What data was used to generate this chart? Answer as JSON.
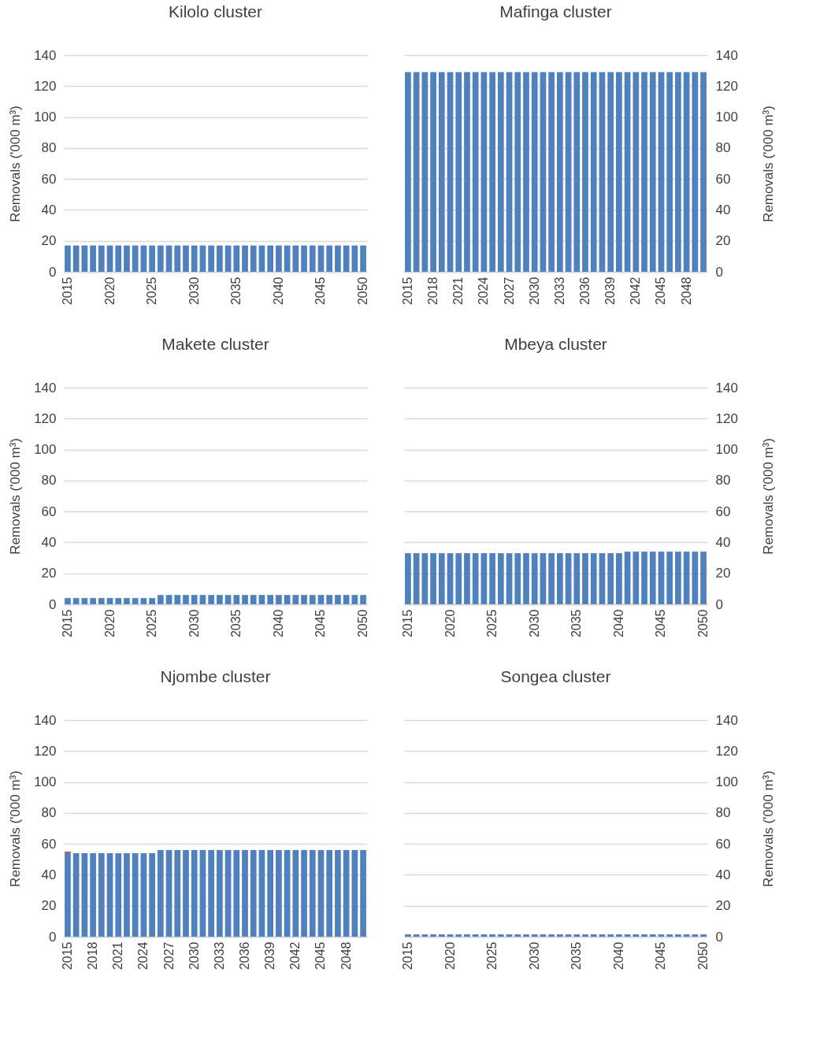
{
  "chart_data": [
    {
      "type": "bar",
      "title": "Kilolo cluster",
      "ylabel": "Removals ('000 m³)",
      "categories": [
        "2015",
        null,
        null,
        null,
        null,
        "2020",
        null,
        null,
        null,
        null,
        "2025",
        null,
        null,
        null,
        null,
        "2030",
        null,
        null,
        null,
        null,
        "2035",
        null,
        null,
        null,
        null,
        "2040",
        null,
        null,
        null,
        null,
        "2045",
        null,
        null,
        null,
        null,
        "2050"
      ],
      "ylim": [
        0,
        140
      ],
      "yticks": [
        0,
        20,
        40,
        60,
        80,
        100,
        120,
        140
      ],
      "grid": "y",
      "series": [
        {
          "color": "#4f81bd",
          "values": [
            17,
            17,
            17,
            17,
            17,
            17,
            17,
            17,
            17,
            17,
            17,
            17,
            17,
            17,
            17,
            17,
            17,
            17,
            17,
            17,
            17,
            17,
            17,
            17,
            17,
            17,
            17,
            17,
            17,
            17,
            17,
            17,
            17,
            17,
            17,
            17
          ]
        }
      ]
    },
    {
      "type": "bar",
      "title": "Mafinga cluster",
      "ylabel": "Removals ('000 m³)",
      "categories": [
        "2015",
        null,
        null,
        "2018",
        null,
        null,
        "2021",
        null,
        null,
        "2024",
        null,
        null,
        "2027",
        null,
        null,
        "2030",
        null,
        null,
        "2033",
        null,
        null,
        "2036",
        null,
        null,
        "2039",
        null,
        null,
        "2042",
        null,
        null,
        "2045",
        null,
        null,
        "2048",
        null,
        null
      ],
      "ylim": [
        0,
        140
      ],
      "yticks": [
        0,
        20,
        40,
        60,
        80,
        100,
        120,
        140
      ],
      "grid": "y",
      "series": [
        {
          "color": "#4f81bd",
          "values": [
            129,
            129,
            129,
            129,
            129,
            129,
            129,
            129,
            129,
            129,
            129,
            129,
            129,
            129,
            129,
            129,
            129,
            129,
            129,
            129,
            129,
            129,
            129,
            129,
            129,
            129,
            129,
            129,
            129,
            129,
            129,
            129,
            129,
            129,
            129,
            129
          ]
        }
      ]
    },
    {
      "type": "bar",
      "title": "Makete cluster",
      "ylabel": "Removals ('000 m³)",
      "categories": [
        "2015",
        null,
        null,
        null,
        null,
        "2020",
        null,
        null,
        null,
        null,
        "2025",
        null,
        null,
        null,
        null,
        "2030",
        null,
        null,
        null,
        null,
        "2035",
        null,
        null,
        null,
        null,
        "2040",
        null,
        null,
        null,
        null,
        "2045",
        null,
        null,
        null,
        null,
        "2050"
      ],
      "ylim": [
        0,
        140
      ],
      "yticks": [
        0,
        20,
        40,
        60,
        80,
        100,
        120,
        140
      ],
      "grid": "y",
      "series": [
        {
          "color": "#4f81bd",
          "values": [
            4,
            4,
            4,
            4,
            4,
            4,
            4,
            4,
            4,
            4,
            4,
            6,
            6,
            6,
            6,
            6,
            6,
            6,
            6,
            6,
            6,
            6,
            6,
            6,
            6,
            6,
            6,
            6,
            6,
            6,
            6,
            6,
            6,
            6,
            6,
            6
          ]
        }
      ]
    },
    {
      "type": "bar",
      "title": "Mbeya cluster",
      "ylabel": "Removals ('000 m³)",
      "categories": [
        "2015",
        null,
        null,
        null,
        null,
        "2020",
        null,
        null,
        null,
        null,
        "2025",
        null,
        null,
        null,
        null,
        "2030",
        null,
        null,
        null,
        null,
        "2035",
        null,
        null,
        null,
        null,
        "2040",
        null,
        null,
        null,
        null,
        "2045",
        null,
        null,
        null,
        null,
        "2050"
      ],
      "ylim": [
        0,
        140
      ],
      "yticks": [
        0,
        20,
        40,
        60,
        80,
        100,
        120,
        140
      ],
      "grid": "y",
      "series": [
        {
          "color": "#4f81bd",
          "values": [
            33,
            33,
            33,
            33,
            33,
            33,
            33,
            33,
            33,
            33,
            33,
            33,
            33,
            33,
            33,
            33,
            33,
            33,
            33,
            33,
            33,
            33,
            33,
            33,
            33,
            33,
            34,
            34,
            34,
            34,
            34,
            34,
            34,
            34,
            34,
            34
          ]
        }
      ]
    },
    {
      "type": "bar",
      "title": "Njombe cluster",
      "ylabel": "Removals ('000 m³)",
      "categories": [
        "2015",
        null,
        null,
        "2018",
        null,
        null,
        "2021",
        null,
        null,
        "2024",
        null,
        null,
        "2027",
        null,
        null,
        "2030",
        null,
        null,
        "2033",
        null,
        null,
        "2036",
        null,
        null,
        "2039",
        null,
        null,
        "2042",
        null,
        null,
        "2045",
        null,
        null,
        "2048",
        null,
        null
      ],
      "ylim": [
        0,
        140
      ],
      "yticks": [
        0,
        20,
        40,
        60,
        80,
        100,
        120,
        140
      ],
      "grid": "y",
      "stacked": true,
      "series": [
        {
          "color": "#4f81bd",
          "values": [
            54,
            54,
            54,
            54,
            54,
            54,
            54,
            54,
            54,
            54,
            54,
            56,
            56,
            56,
            56,
            56,
            56,
            56,
            56,
            56,
            56,
            56,
            56,
            56,
            56,
            56,
            56,
            56,
            56,
            56,
            56,
            56,
            56,
            56,
            56,
            56
          ]
        },
        {
          "color": "#c0504d",
          "values": [
            1,
            null,
            null,
            null,
            null,
            null,
            null,
            null,
            null,
            null,
            null,
            null,
            null,
            null,
            null,
            null,
            null,
            null,
            null,
            null,
            null,
            null,
            null,
            null,
            null,
            null,
            null,
            null,
            null,
            null,
            null,
            null,
            null,
            null,
            null,
            null
          ]
        }
      ]
    },
    {
      "type": "bar",
      "title": "Songea cluster",
      "ylabel": "Removals ('000 m³)",
      "categories": [
        "2015",
        null,
        null,
        null,
        null,
        "2020",
        null,
        null,
        null,
        null,
        "2025",
        null,
        null,
        null,
        null,
        "2030",
        null,
        null,
        null,
        null,
        "2035",
        null,
        null,
        null,
        null,
        "2040",
        null,
        null,
        null,
        null,
        "2045",
        null,
        null,
        null,
        null,
        "2050"
      ],
      "ylim": [
        0,
        140
      ],
      "yticks": [
        0,
        20,
        40,
        60,
        80,
        100,
        120,
        140
      ],
      "grid": "y",
      "series": [
        {
          "color": "#4f81bd",
          "values": [
            1.5,
            1.5,
            1.5,
            1.5,
            1.5,
            1.5,
            1.5,
            1.5,
            1.5,
            1.5,
            1.5,
            1.5,
            1.5,
            1.5,
            1.5,
            1.5,
            1.5,
            1.5,
            1.5,
            1.5,
            1.5,
            1.5,
            1.5,
            1.5,
            1.5,
            1.5,
            1.5,
            1.5,
            1.5,
            1.5,
            1.5,
            1.5,
            1.5,
            1.5,
            1.5,
            1.5
          ]
        }
      ]
    }
  ]
}
